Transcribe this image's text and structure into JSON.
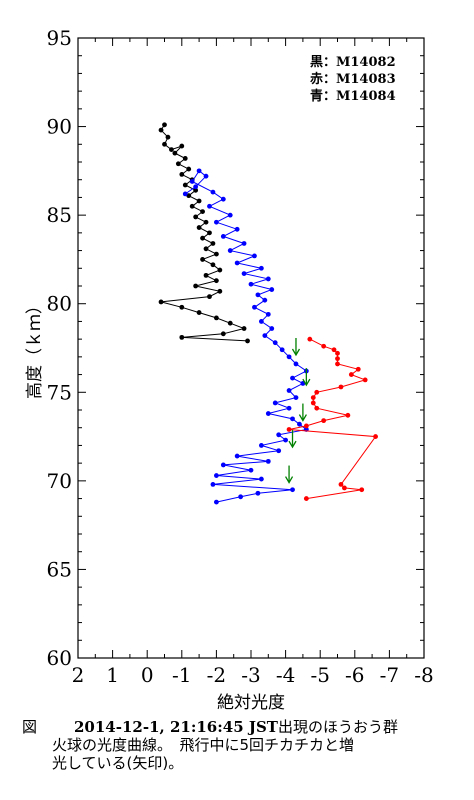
{
  "chart_data": {
    "type": "scatter",
    "xlabel": "絶対光度",
    "ylabel": "高度（ｋｍ）",
    "xlim": [
      2,
      -8
    ],
    "ylim": [
      60,
      95
    ],
    "x_ticks": [
      "2",
      "1",
      "0",
      "-1",
      "-2",
      "-3",
      "-4",
      "-5",
      "-6",
      "-7",
      "-8"
    ],
    "y_ticks": [
      "60",
      "65",
      "70",
      "75",
      "80",
      "85",
      "90",
      "95"
    ],
    "grid": false,
    "legend_position": "top-right",
    "legend": [
      "黒：M14082",
      "赤：M14083",
      "青：M14084"
    ],
    "series": [
      {
        "color": "#000000",
        "points": [
          [
            -0.5,
            90.1
          ],
          [
            -0.4,
            89.8
          ],
          [
            -0.6,
            89.4
          ],
          [
            -0.5,
            89.0
          ],
          [
            -0.7,
            88.7
          ],
          [
            -1.0,
            88.9
          ],
          [
            -0.8,
            88.5
          ],
          [
            -1.1,
            88.2
          ],
          [
            -0.9,
            87.9
          ],
          [
            -1.2,
            87.6
          ],
          [
            -1.0,
            87.3
          ],
          [
            -1.3,
            87.0
          ],
          [
            -1.1,
            86.7
          ],
          [
            -1.4,
            86.4
          ],
          [
            -1.2,
            86.1
          ],
          [
            -1.5,
            85.8
          ],
          [
            -1.3,
            85.5
          ],
          [
            -1.6,
            85.2
          ],
          [
            -1.4,
            84.9
          ],
          [
            -1.7,
            84.6
          ],
          [
            -1.5,
            84.3
          ],
          [
            -1.8,
            84.0
          ],
          [
            -1.6,
            83.7
          ],
          [
            -1.9,
            83.4
          ],
          [
            -1.7,
            83.1
          ],
          [
            -2.0,
            82.8
          ],
          [
            -1.6,
            82.5
          ],
          [
            -1.9,
            82.2
          ],
          [
            -2.1,
            81.9
          ],
          [
            -1.7,
            81.6
          ],
          [
            -2.0,
            81.3
          ],
          [
            -1.4,
            81.0
          ],
          [
            -2.1,
            80.7
          ],
          [
            -1.8,
            80.4
          ],
          [
            -0.4,
            80.1
          ],
          [
            -1.0,
            79.8
          ],
          [
            -1.5,
            79.5
          ],
          [
            -2.0,
            79.2
          ],
          [
            -2.4,
            78.9
          ],
          [
            -2.8,
            78.6
          ],
          [
            -2.2,
            78.3
          ],
          [
            -1.0,
            78.1
          ],
          [
            -2.9,
            77.9
          ]
        ]
      },
      {
        "color": "#0000ff",
        "points": [
          [
            -1.1,
            86.2
          ],
          [
            -1.4,
            86.6
          ],
          [
            -1.7,
            87.2
          ],
          [
            -1.5,
            87.5
          ],
          [
            -1.3,
            86.9
          ],
          [
            -1.9,
            86.3
          ],
          [
            -2.2,
            85.9
          ],
          [
            -1.8,
            85.5
          ],
          [
            -2.4,
            85.0
          ],
          [
            -2.0,
            84.6
          ],
          [
            -2.6,
            84.2
          ],
          [
            -2.2,
            83.8
          ],
          [
            -2.8,
            83.4
          ],
          [
            -2.4,
            83.0
          ],
          [
            -3.1,
            82.7
          ],
          [
            -2.6,
            82.3
          ],
          [
            -3.3,
            82.0
          ],
          [
            -2.8,
            81.7
          ],
          [
            -3.5,
            81.4
          ],
          [
            -3.0,
            81.1
          ],
          [
            -3.6,
            80.8
          ],
          [
            -3.2,
            80.5
          ],
          [
            -3.4,
            80.2
          ],
          [
            -3.1,
            79.8
          ],
          [
            -3.5,
            79.4
          ],
          [
            -3.3,
            79.0
          ],
          [
            -3.6,
            78.6
          ],
          [
            -3.4,
            78.2
          ],
          [
            -3.7,
            77.8
          ],
          [
            -3.9,
            77.4
          ],
          [
            -4.1,
            77.0
          ],
          [
            -4.3,
            76.6
          ],
          [
            -4.6,
            76.2
          ],
          [
            -4.2,
            75.8
          ],
          [
            -4.5,
            75.5
          ],
          [
            -4.1,
            75.1
          ],
          [
            -4.3,
            74.7
          ],
          [
            -3.7,
            74.4
          ],
          [
            -4.1,
            74.1
          ],
          [
            -3.5,
            73.8
          ],
          [
            -4.2,
            73.5
          ],
          [
            -4.4,
            73.2
          ],
          [
            -4.6,
            72.9
          ],
          [
            -3.8,
            72.6
          ],
          [
            -4.0,
            72.3
          ],
          [
            -3.3,
            72.0
          ],
          [
            -3.8,
            71.7
          ],
          [
            -2.6,
            71.4
          ],
          [
            -3.5,
            71.1
          ],
          [
            -2.2,
            70.9
          ],
          [
            -3.0,
            70.6
          ],
          [
            -2.0,
            70.3
          ],
          [
            -3.3,
            70.1
          ],
          [
            -1.9,
            69.8
          ],
          [
            -4.2,
            69.5
          ],
          [
            -3.2,
            69.3
          ],
          [
            -2.7,
            69.1
          ],
          [
            -2.0,
            68.8
          ]
        ]
      },
      {
        "color": "#ff0000",
        "points": [
          [
            -4.7,
            78.0
          ],
          [
            -5.1,
            77.6
          ],
          [
            -5.4,
            77.4
          ],
          [
            -5.5,
            77.2
          ],
          [
            -5.5,
            76.9
          ],
          [
            -5.5,
            76.6
          ],
          [
            -6.1,
            76.3
          ],
          [
            -5.9,
            76.0
          ],
          [
            -6.3,
            75.7
          ],
          [
            -5.6,
            75.3
          ],
          [
            -4.9,
            75.0
          ],
          [
            -4.8,
            74.7
          ],
          [
            -4.8,
            74.4
          ],
          [
            -4.9,
            74.1
          ],
          [
            -5.8,
            73.7
          ],
          [
            -5.1,
            73.4
          ],
          [
            -4.6,
            73.1
          ],
          [
            -4.1,
            72.9
          ],
          [
            -6.6,
            72.5
          ],
          [
            -5.6,
            69.8
          ],
          [
            -5.7,
            69.6
          ],
          [
            -6.2,
            69.5
          ],
          [
            -4.6,
            69.0
          ]
        ]
      }
    ],
    "annotations": [
      {
        "type": "arrow",
        "color": "#008000",
        "x": -4.3,
        "y": 77.5
      },
      {
        "type": "arrow",
        "color": "#008000",
        "x": -4.6,
        "y": 75.8
      },
      {
        "type": "arrow",
        "color": "#008000",
        "x": -4.5,
        "y": 73.8
      },
      {
        "type": "arrow",
        "color": "#008000",
        "x": -4.2,
        "y": 72.3
      },
      {
        "type": "arrow",
        "color": "#008000",
        "x": -4.1,
        "y": 70.3
      }
    ]
  },
  "caption": {
    "figure_label": "図",
    "date_text": "2014-12-1,  21:16:45 JST",
    "line1_rest": "出現のほうおう群",
    "line2": "火球の光度曲線。　飛行中に5回チカチカと増",
    "line3": "光している(矢印)。"
  }
}
